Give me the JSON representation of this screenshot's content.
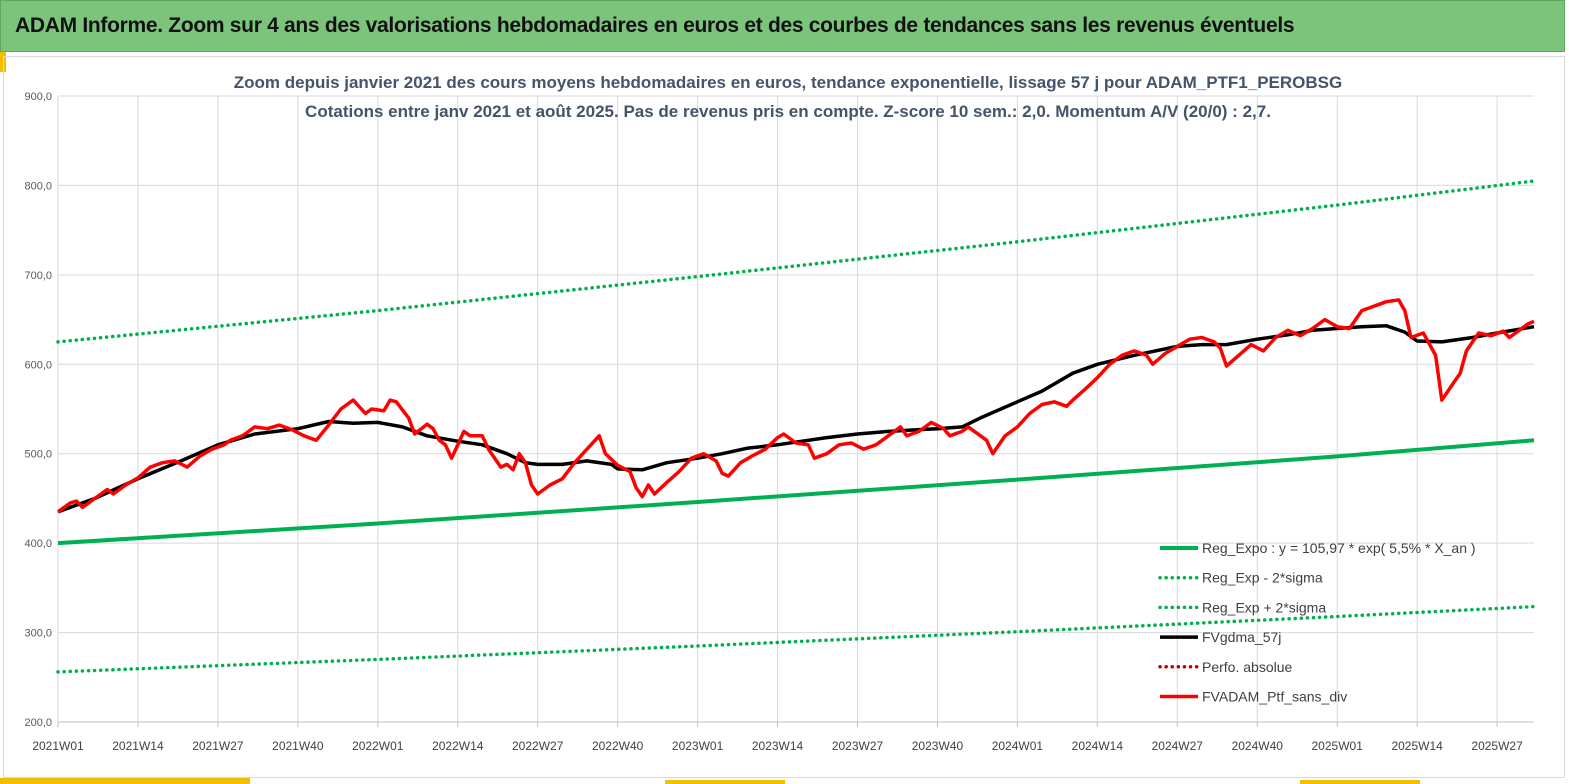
{
  "header": {
    "title": "ADAM Informe. Zoom sur 4 ans des valorisations hebdomadaires en euros et des courbes de tendances sans les revenus éventuels"
  },
  "chart_data": {
    "type": "line",
    "title": "Zoom depuis janvier 2021 des cours moyens hebdomadaires en euros, tendance exponentielle, lissage 57 j pour ADAM_PTF1_PEROBSG",
    "subtitle": "Cotations entre janv 2021 et août 2025. Pas de revenus pris en compte. Z-score 10 sem.: 2,0. Momentum A/V (20/0) : 2,7.",
    "ylim": [
      200,
      900
    ],
    "yticks": [
      "200,0",
      "300,0",
      "400,0",
      "500,0",
      "600,0",
      "700,0",
      "800,0",
      "900,0"
    ],
    "xlim": [
      0,
      240
    ],
    "xticks": [
      {
        "x": 0,
        "label": "2021W01"
      },
      {
        "x": 13,
        "label": "2021W14"
      },
      {
        "x": 26,
        "label": "2021W27"
      },
      {
        "x": 39,
        "label": "2021W40"
      },
      {
        "x": 52,
        "label": "2022W01"
      },
      {
        "x": 65,
        "label": "2022W14"
      },
      {
        "x": 78,
        "label": "2022W27"
      },
      {
        "x": 91,
        "label": "2022W40"
      },
      {
        "x": 104,
        "label": "2023W01"
      },
      {
        "x": 117,
        "label": "2023W14"
      },
      {
        "x": 130,
        "label": "2023W27"
      },
      {
        "x": 143,
        "label": "2023W40"
      },
      {
        "x": 156,
        "label": "2024W01"
      },
      {
        "x": 169,
        "label": "2024W14"
      },
      {
        "x": 182,
        "label": "2024W27"
      },
      {
        "x": 195,
        "label": "2024W40"
      },
      {
        "x": 208,
        "label": "2025W01"
      },
      {
        "x": 221,
        "label": "2025W14"
      },
      {
        "x": 234,
        "label": "2025W27"
      }
    ],
    "grid": true,
    "legend_position": "bottom-right",
    "series": [
      {
        "name": "Reg_Expo : y = 105,97 * exp( 5,5% *  X_an )",
        "style": "solid",
        "color": "#00b050",
        "points": [
          [
            0,
            400
          ],
          [
            52,
            422
          ],
          [
            104,
            446
          ],
          [
            156,
            471
          ],
          [
            208,
            497
          ],
          [
            240,
            515
          ]
        ]
      },
      {
        "name": "Reg_Exp - 2*sigma",
        "style": "dotted",
        "color": "#00b050",
        "points": [
          [
            0,
            256
          ],
          [
            52,
            270
          ],
          [
            104,
            285
          ],
          [
            156,
            301
          ],
          [
            208,
            318
          ],
          [
            240,
            329
          ]
        ]
      },
      {
        "name": "Reg_Exp + 2*sigma",
        "style": "dotted",
        "color": "#00b050",
        "points": [
          [
            0,
            625
          ],
          [
            52,
            660
          ],
          [
            104,
            698
          ],
          [
            156,
            737
          ],
          [
            208,
            778
          ],
          [
            240,
            805
          ]
        ]
      },
      {
        "name": "FVgdma_57j",
        "style": "solid",
        "color": "#000000",
        "points": [
          [
            0,
            435
          ],
          [
            6,
            450
          ],
          [
            13,
            472
          ],
          [
            20,
            492
          ],
          [
            26,
            510
          ],
          [
            32,
            522
          ],
          [
            39,
            528
          ],
          [
            44,
            536
          ],
          [
            48,
            534
          ],
          [
            52,
            535
          ],
          [
            56,
            530
          ],
          [
            60,
            520
          ],
          [
            65,
            514
          ],
          [
            69,
            510
          ],
          [
            73,
            500
          ],
          [
            76,
            490
          ],
          [
            78,
            488
          ],
          [
            82,
            488
          ],
          [
            86,
            492
          ],
          [
            90,
            488
          ],
          [
            91,
            483
          ],
          [
            95,
            482
          ],
          [
            99,
            490
          ],
          [
            104,
            495
          ],
          [
            108,
            500
          ],
          [
            112,
            506
          ],
          [
            117,
            510
          ],
          [
            121,
            514
          ],
          [
            125,
            518
          ],
          [
            130,
            522
          ],
          [
            135,
            525
          ],
          [
            140,
            527
          ],
          [
            143,
            528
          ],
          [
            147,
            530
          ],
          [
            150,
            540
          ],
          [
            156,
            558
          ],
          [
            160,
            570
          ],
          [
            165,
            590
          ],
          [
            169,
            600
          ],
          [
            175,
            610
          ],
          [
            182,
            620
          ],
          [
            186,
            622
          ],
          [
            190,
            622
          ],
          [
            195,
            628
          ],
          [
            200,
            633
          ],
          [
            204,
            638
          ],
          [
            208,
            640
          ],
          [
            212,
            642
          ],
          [
            216,
            643
          ],
          [
            219,
            636
          ],
          [
            221,
            626
          ],
          [
            225,
            625
          ],
          [
            230,
            630
          ],
          [
            234,
            635
          ],
          [
            240,
            642
          ]
        ]
      },
      {
        "name": "Perfo. absolue",
        "style": "dotted",
        "color": "#c00000",
        "points": []
      },
      {
        "name": "FVADAM_Ptf_sans_div",
        "style": "solid",
        "color": "#ff0000",
        "points": [
          [
            0,
            435
          ],
          [
            2,
            445
          ],
          [
            3,
            447
          ],
          [
            4,
            440
          ],
          [
            6,
            450
          ],
          [
            8,
            460
          ],
          [
            9,
            455
          ],
          [
            11,
            465
          ],
          [
            13,
            473
          ],
          [
            15,
            485
          ],
          [
            17,
            490
          ],
          [
            19,
            492
          ],
          [
            21,
            485
          ],
          [
            23,
            497
          ],
          [
            25,
            505
          ],
          [
            27,
            510
          ],
          [
            28,
            515
          ],
          [
            30,
            520
          ],
          [
            32,
            530
          ],
          [
            34,
            528
          ],
          [
            36,
            532
          ],
          [
            38,
            527
          ],
          [
            40,
            520
          ],
          [
            42,
            515
          ],
          [
            44,
            532
          ],
          [
            46,
            550
          ],
          [
            48,
            560
          ],
          [
            50,
            545
          ],
          [
            51,
            550
          ],
          [
            53,
            548
          ],
          [
            54,
            560
          ],
          [
            55,
            558
          ],
          [
            57,
            540
          ],
          [
            58,
            522
          ],
          [
            60,
            533
          ],
          [
            61,
            528
          ],
          [
            62,
            515
          ],
          [
            63,
            510
          ],
          [
            64,
            495
          ],
          [
            65,
            510
          ],
          [
            66,
            525
          ],
          [
            67,
            520
          ],
          [
            69,
            520
          ],
          [
            70,
            505
          ],
          [
            72,
            485
          ],
          [
            73,
            488
          ],
          [
            74,
            482
          ],
          [
            75,
            500
          ],
          [
            76,
            490
          ],
          [
            77,
            465
          ],
          [
            78,
            455
          ],
          [
            80,
            465
          ],
          [
            82,
            472
          ],
          [
            84,
            490
          ],
          [
            86,
            505
          ],
          [
            88,
            520
          ],
          [
            89,
            500
          ],
          [
            91,
            487
          ],
          [
            93,
            480
          ],
          [
            94,
            462
          ],
          [
            95,
            452
          ],
          [
            96,
            465
          ],
          [
            97,
            455
          ],
          [
            99,
            468
          ],
          [
            101,
            480
          ],
          [
            103,
            495
          ],
          [
            105,
            500
          ],
          [
            107,
            492
          ],
          [
            108,
            478
          ],
          [
            109,
            475
          ],
          [
            111,
            490
          ],
          [
            113,
            498
          ],
          [
            115,
            505
          ],
          [
            117,
            518
          ],
          [
            118,
            522
          ],
          [
            120,
            512
          ],
          [
            122,
            510
          ],
          [
            123,
            495
          ],
          [
            125,
            500
          ],
          [
            127,
            510
          ],
          [
            129,
            512
          ],
          [
            131,
            505
          ],
          [
            133,
            510
          ],
          [
            135,
            520
          ],
          [
            137,
            530
          ],
          [
            138,
            520
          ],
          [
            140,
            525
          ],
          [
            142,
            535
          ],
          [
            144,
            528
          ],
          [
            145,
            520
          ],
          [
            147,
            525
          ],
          [
            148,
            530
          ],
          [
            150,
            520
          ],
          [
            151,
            515
          ],
          [
            152,
            500
          ],
          [
            154,
            520
          ],
          [
            156,
            530
          ],
          [
            158,
            545
          ],
          [
            160,
            555
          ],
          [
            162,
            558
          ],
          [
            164,
            553
          ],
          [
            165,
            560
          ],
          [
            167,
            572
          ],
          [
            169,
            585
          ],
          [
            171,
            600
          ],
          [
            173,
            610
          ],
          [
            175,
            615
          ],
          [
            177,
            610
          ],
          [
            178,
            600
          ],
          [
            180,
            612
          ],
          [
            182,
            620
          ],
          [
            184,
            628
          ],
          [
            186,
            630
          ],
          [
            188,
            625
          ],
          [
            189,
            618
          ],
          [
            190,
            598
          ],
          [
            192,
            610
          ],
          [
            194,
            622
          ],
          [
            196,
            615
          ],
          [
            198,
            630
          ],
          [
            200,
            638
          ],
          [
            202,
            632
          ],
          [
            204,
            640
          ],
          [
            206,
            650
          ],
          [
            208,
            642
          ],
          [
            210,
            640
          ],
          [
            212,
            660
          ],
          [
            214,
            665
          ],
          [
            216,
            670
          ],
          [
            218,
            672
          ],
          [
            219,
            660
          ],
          [
            220,
            630
          ],
          [
            222,
            635
          ],
          [
            224,
            610
          ],
          [
            225,
            560
          ],
          [
            227,
            580
          ],
          [
            228,
            590
          ],
          [
            229,
            615
          ],
          [
            231,
            635
          ],
          [
            233,
            632
          ],
          [
            235,
            637
          ],
          [
            236,
            630
          ],
          [
            238,
            640
          ],
          [
            239,
            645
          ],
          [
            240,
            648
          ]
        ]
      }
    ]
  }
}
